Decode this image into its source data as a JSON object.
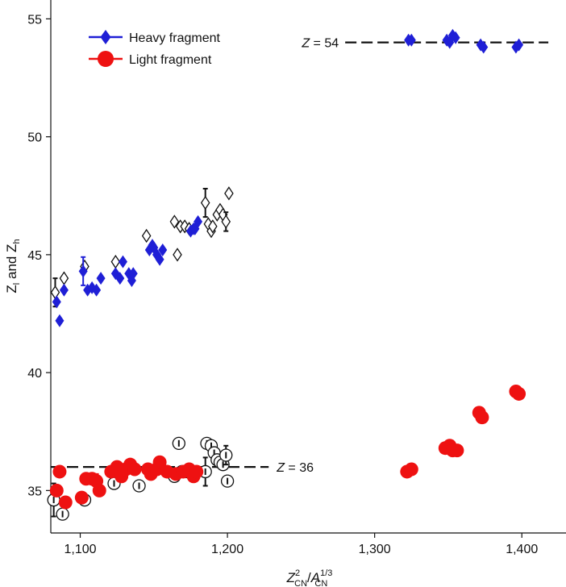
{
  "chart_data": {
    "type": "scatter",
    "title": "",
    "xlabel": {
      "base": "Z",
      "base_sub": "CN",
      "base_sup": "2",
      "sep": "/",
      "denom": "A",
      "denom_sub": "CN",
      "denom_sup": "1/3"
    },
    "ylabel": {
      "a": "Z",
      "a_sub": "l",
      "mid": " and ",
      "b": "Z",
      "b_sub": "h"
    },
    "xlim": [
      1080,
      1430
    ],
    "ylim": [
      33.2,
      55.8
    ],
    "xticks": [
      1100,
      1200,
      1300,
      1400
    ],
    "xtick_labels": [
      "1,100",
      "1,200",
      "1,300",
      "1,400"
    ],
    "yticks": [
      35,
      40,
      45,
      50,
      55
    ],
    "ytick_labels": [
      "35",
      "40",
      "45",
      "50",
      "55"
    ],
    "legend_position": "top-left",
    "colors": {
      "heavy": "#1f1fd6",
      "light": "#ee1111",
      "open": "#111111",
      "line": "#111111"
    },
    "legend": [
      {
        "name": "Heavy fragment",
        "marker": "diamond",
        "color": "#1f1fd6"
      },
      {
        "name": "Light fragment",
        "marker": "circle",
        "color": "#ee1111"
      }
    ],
    "reference_lines": [
      {
        "y": 54,
        "x_range": [
          1280,
          1418
        ],
        "label_prefix": "Z",
        "label_suffix": " = 54",
        "label_side": "left"
      },
      {
        "y": 36,
        "x_range": [
          1080,
          1228
        ],
        "label_prefix": "Z",
        "label_suffix": " = 36",
        "label_side": "right"
      }
    ],
    "series": [
      {
        "name": "Heavy fragment",
        "marker": "diamond-filled",
        "points": [
          {
            "x": 1084,
            "y": 43.0
          },
          {
            "x": 1086,
            "y": 42.2
          },
          {
            "x": 1089,
            "y": 43.5
          },
          {
            "x": 1102,
            "y": 44.3,
            "err": 0.6
          },
          {
            "x": 1105,
            "y": 43.5
          },
          {
            "x": 1108,
            "y": 43.6
          },
          {
            "x": 1111,
            "y": 43.5
          },
          {
            "x": 1114,
            "y": 44.0
          },
          {
            "x": 1124,
            "y": 44.2
          },
          {
            "x": 1127,
            "y": 44.0
          },
          {
            "x": 1129,
            "y": 44.7
          },
          {
            "x": 1133,
            "y": 44.2
          },
          {
            "x": 1135,
            "y": 43.9
          },
          {
            "x": 1136,
            "y": 44.2
          },
          {
            "x": 1147,
            "y": 45.2
          },
          {
            "x": 1149,
            "y": 45.4
          },
          {
            "x": 1150,
            "y": 45.3
          },
          {
            "x": 1152,
            "y": 45.0
          },
          {
            "x": 1154,
            "y": 44.8
          },
          {
            "x": 1156,
            "y": 45.2
          },
          {
            "x": 1175,
            "y": 46.0
          },
          {
            "x": 1177,
            "y": 46.1
          },
          {
            "x": 1178,
            "y": 46.1
          },
          {
            "x": 1180,
            "y": 46.4
          },
          {
            "x": 1323,
            "y": 54.1
          },
          {
            "x": 1325,
            "y": 54.1
          },
          {
            "x": 1349,
            "y": 54.1
          },
          {
            "x": 1351,
            "y": 54.0
          },
          {
            "x": 1353,
            "y": 54.3
          },
          {
            "x": 1355,
            "y": 54.2
          },
          {
            "x": 1372,
            "y": 53.9
          },
          {
            "x": 1374,
            "y": 53.8
          },
          {
            "x": 1396,
            "y": 53.8
          },
          {
            "x": 1398,
            "y": 53.9
          }
        ]
      },
      {
        "name": "Light fragment",
        "marker": "circle-filled",
        "points": [
          {
            "x": 1084,
            "y": 35.0
          },
          {
            "x": 1086,
            "y": 35.8
          },
          {
            "x": 1090,
            "y": 34.5
          },
          {
            "x": 1101,
            "y": 34.7
          },
          {
            "x": 1104,
            "y": 35.5
          },
          {
            "x": 1108,
            "y": 35.5
          },
          {
            "x": 1111,
            "y": 35.4,
            "err": 0.3
          },
          {
            "x": 1113,
            "y": 35.0
          },
          {
            "x": 1121,
            "y": 35.8
          },
          {
            "x": 1125,
            "y": 36.0
          },
          {
            "x": 1128,
            "y": 35.6
          },
          {
            "x": 1131,
            "y": 35.9
          },
          {
            "x": 1134,
            "y": 36.1
          },
          {
            "x": 1137,
            "y": 35.9
          },
          {
            "x": 1146,
            "y": 35.9
          },
          {
            "x": 1148,
            "y": 35.7
          },
          {
            "x": 1152,
            "y": 35.9
          },
          {
            "x": 1154,
            "y": 36.2
          },
          {
            "x": 1159,
            "y": 35.8
          },
          {
            "x": 1165,
            "y": 35.7
          },
          {
            "x": 1170,
            "y": 35.8
          },
          {
            "x": 1174,
            "y": 35.9
          },
          {
            "x": 1177,
            "y": 35.6
          },
          {
            "x": 1179,
            "y": 35.8
          },
          {
            "x": 1322,
            "y": 35.8
          },
          {
            "x": 1325,
            "y": 35.9
          },
          {
            "x": 1348,
            "y": 36.8
          },
          {
            "x": 1351,
            "y": 36.9
          },
          {
            "x": 1353,
            "y": 36.7
          },
          {
            "x": 1356,
            "y": 36.7
          },
          {
            "x": 1371,
            "y": 38.3
          },
          {
            "x": 1373,
            "y": 38.1
          },
          {
            "x": 1396,
            "y": 39.2
          },
          {
            "x": 1398,
            "y": 39.1
          }
        ]
      },
      {
        "name": "",
        "marker": "diamond-open",
        "points": [
          {
            "x": 1083,
            "y": 43.4,
            "err": 0.6
          },
          {
            "x": 1089,
            "y": 44.0
          },
          {
            "x": 1103,
            "y": 44.5
          },
          {
            "x": 1124,
            "y": 44.7
          },
          {
            "x": 1145,
            "y": 45.8
          },
          {
            "x": 1164,
            "y": 46.4
          },
          {
            "x": 1166,
            "y": 45.0
          },
          {
            "x": 1168,
            "y": 46.2
          },
          {
            "x": 1171,
            "y": 46.2
          },
          {
            "x": 1174,
            "y": 46.1
          },
          {
            "x": 1185,
            "y": 47.2,
            "err": 0.6
          },
          {
            "x": 1187,
            "y": 46.3
          },
          {
            "x": 1189,
            "y": 46.0
          },
          {
            "x": 1190,
            "y": 46.2
          },
          {
            "x": 1193,
            "y": 46.7
          },
          {
            "x": 1195,
            "y": 46.9
          },
          {
            "x": 1197,
            "y": 46.7
          },
          {
            "x": 1199,
            "y": 46.4,
            "err": 0.4
          },
          {
            "x": 1201,
            "y": 47.6
          }
        ]
      },
      {
        "name": "",
        "marker": "circle-open",
        "points": [
          {
            "x": 1082,
            "y": 34.6,
            "err": 0.7
          },
          {
            "x": 1088,
            "y": 34.0
          },
          {
            "x": 1103,
            "y": 34.6
          },
          {
            "x": 1123,
            "y": 35.3
          },
          {
            "x": 1140,
            "y": 35.2
          },
          {
            "x": 1164,
            "y": 35.6
          },
          {
            "x": 1167,
            "y": 37.0
          },
          {
            "x": 1169,
            "y": 35.8
          },
          {
            "x": 1172,
            "y": 35.8
          },
          {
            "x": 1185,
            "y": 35.8,
            "err": 0.6
          },
          {
            "x": 1186,
            "y": 37.0
          },
          {
            "x": 1189,
            "y": 36.9
          },
          {
            "x": 1191,
            "y": 36.6
          },
          {
            "x": 1193,
            "y": 36.3
          },
          {
            "x": 1195,
            "y": 36.2
          },
          {
            "x": 1197,
            "y": 36.1
          },
          {
            "x": 1199,
            "y": 36.5,
            "err": 0.4
          },
          {
            "x": 1200,
            "y": 35.4
          }
        ]
      }
    ]
  }
}
